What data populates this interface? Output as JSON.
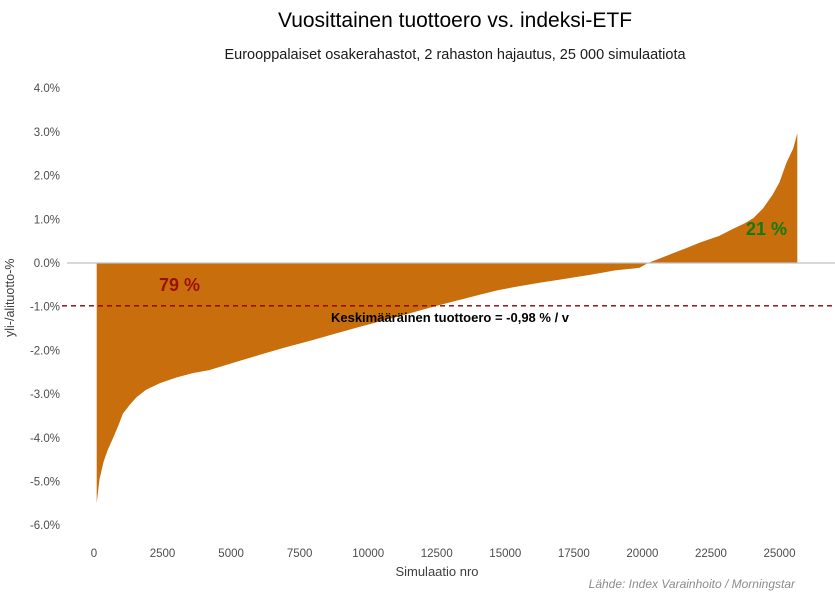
{
  "chart_data": {
    "type": "area",
    "title": "Vuosittainen tuottoero vs. indeksi-ETF",
    "subtitle": "Eurooppalaiset osakerahastot, 2 rahaston hajautus, 25 000 simulaatiota",
    "xlabel": "Simulaatio nro",
    "ylabel": "yli-/alituotto-%",
    "source": "Lähde: Index Varainhoito / Morningstar",
    "xlim": [
      0,
      27000
    ],
    "ylim": [
      -6.0,
      4.0
    ],
    "grid": "none, only zero baseline shown",
    "legend": "none",
    "x_ticks": [
      0,
      2500,
      5000,
      7500,
      10000,
      12500,
      15000,
      17500,
      20000,
      22500,
      25000
    ],
    "y_ticks": [
      {
        "value": 4,
        "label": "4.0%"
      },
      {
        "value": 3,
        "label": "3.0%"
      },
      {
        "value": 2,
        "label": "2.0%"
      },
      {
        "value": 1,
        "label": "1.0%"
      },
      {
        "value": 0,
        "label": "0.0%"
      },
      {
        "value": -1,
        "label": "-1.0%"
      },
      {
        "value": -2,
        "label": "-2.0%"
      },
      {
        "value": -3,
        "label": "-3.0%"
      },
      {
        "value": -4,
        "label": "-4.0%"
      },
      {
        "value": -5,
        "label": "-5.0%"
      },
      {
        "value": -6,
        "label": "-6.0%"
      }
    ],
    "series_name": "Tuottoero per simulaatio (lajiteltu nousevasti)",
    "series_points": [
      [
        100,
        -5.5
      ],
      [
        200,
        -4.95
      ],
      [
        350,
        -4.55
      ],
      [
        500,
        -4.28
      ],
      [
        700,
        -4.0
      ],
      [
        900,
        -3.7
      ],
      [
        1050,
        -3.45
      ],
      [
        1300,
        -3.25
      ],
      [
        1550,
        -3.07
      ],
      [
        1900,
        -2.9
      ],
      [
        2400,
        -2.75
      ],
      [
        3000,
        -2.62
      ],
      [
        3600,
        -2.52
      ],
      [
        4200,
        -2.45
      ],
      [
        5100,
        -2.28
      ],
      [
        6050,
        -2.1
      ],
      [
        7000,
        -1.93
      ],
      [
        8000,
        -1.76
      ],
      [
        8900,
        -1.6
      ],
      [
        9700,
        -1.46
      ],
      [
        10400,
        -1.34
      ],
      [
        11150,
        -1.22
      ],
      [
        11800,
        -1.1
      ],
      [
        12500,
        -0.98
      ],
      [
        13300,
        -0.85
      ],
      [
        14100,
        -0.72
      ],
      [
        14750,
        -0.62
      ],
      [
        15500,
        -0.53
      ],
      [
        16250,
        -0.45
      ],
      [
        17000,
        -0.38
      ],
      [
        17500,
        -0.33
      ],
      [
        18000,
        -0.28
      ],
      [
        18450,
        -0.23
      ],
      [
        19000,
        -0.17
      ],
      [
        19900,
        -0.11
      ],
      [
        20200,
        0.0
      ],
      [
        20700,
        0.12
      ],
      [
        21100,
        0.22
      ],
      [
        21600,
        0.34
      ],
      [
        22100,
        0.47
      ],
      [
        22800,
        0.62
      ],
      [
        23300,
        0.78
      ],
      [
        23700,
        0.9
      ],
      [
        24050,
        1.03
      ],
      [
        24400,
        1.25
      ],
      [
        24750,
        1.56
      ],
      [
        25000,
        1.85
      ],
      [
        25250,
        2.29
      ],
      [
        25500,
        2.62
      ],
      [
        25650,
        2.97
      ]
    ],
    "mean_line": {
      "value": -0.98,
      "label": "Keskimääräinen tuottoero = -0,98 % / v",
      "style": "dashed"
    },
    "annotations": {
      "pct_below": {
        "text": "79 %",
        "meaning": "share of simulations below 0"
      },
      "pct_above": {
        "text": "21 %",
        "meaning": "share of simulations above 0"
      }
    },
    "colors": {
      "fill": "#C86E0D",
      "zero_line": "#C0C0C0",
      "mean_line": "#8B0000",
      "below_label": "#9B1005",
      "above_label": "#107C10",
      "tick_text": "#4D4D4D",
      "source_text": "#8C8C8C"
    }
  }
}
